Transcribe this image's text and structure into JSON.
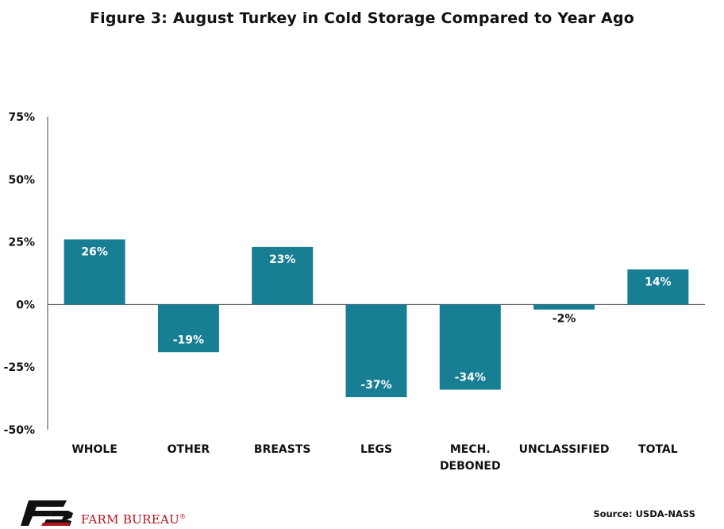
{
  "chart_data": {
    "type": "bar",
    "title": "Figure 3: August  Turkey in Cold Storage Compared to Year Ago",
    "categories": [
      "WHOLE",
      "OTHER",
      "BREASTS",
      "LEGS",
      "MECH. DEBONED",
      "UNCLASSIFIED",
      "TOTAL"
    ],
    "category_lines": [
      [
        "WHOLE"
      ],
      [
        "OTHER"
      ],
      [
        "BREASTS"
      ],
      [
        "LEGS"
      ],
      [
        "MECH.",
        "DEBONED"
      ],
      [
        "UNCLASSIFIED"
      ],
      [
        "TOTAL"
      ]
    ],
    "values": [
      26,
      -19,
      23,
      -37,
      -34,
      -2,
      14
    ],
    "data_labels": [
      "26%",
      "-19%",
      "23%",
      "-37%",
      "-34%",
      "-2%",
      "14%"
    ],
    "yticks": [
      75,
      50,
      25,
      0,
      -25,
      -50
    ],
    "ytick_labels": [
      "75%",
      "50%",
      "25%",
      "0%",
      "-25%",
      "-50%"
    ],
    "ylim": [
      -50,
      75
    ],
    "bar_color": "#177e94",
    "grid": false
  },
  "footer": {
    "logo_text": "FARM BUREAU",
    "logo_reg": "®",
    "source": "Source: USDA-NASS"
  },
  "colors": {
    "brand": "#b5121b",
    "logo_dark": "#111111"
  }
}
